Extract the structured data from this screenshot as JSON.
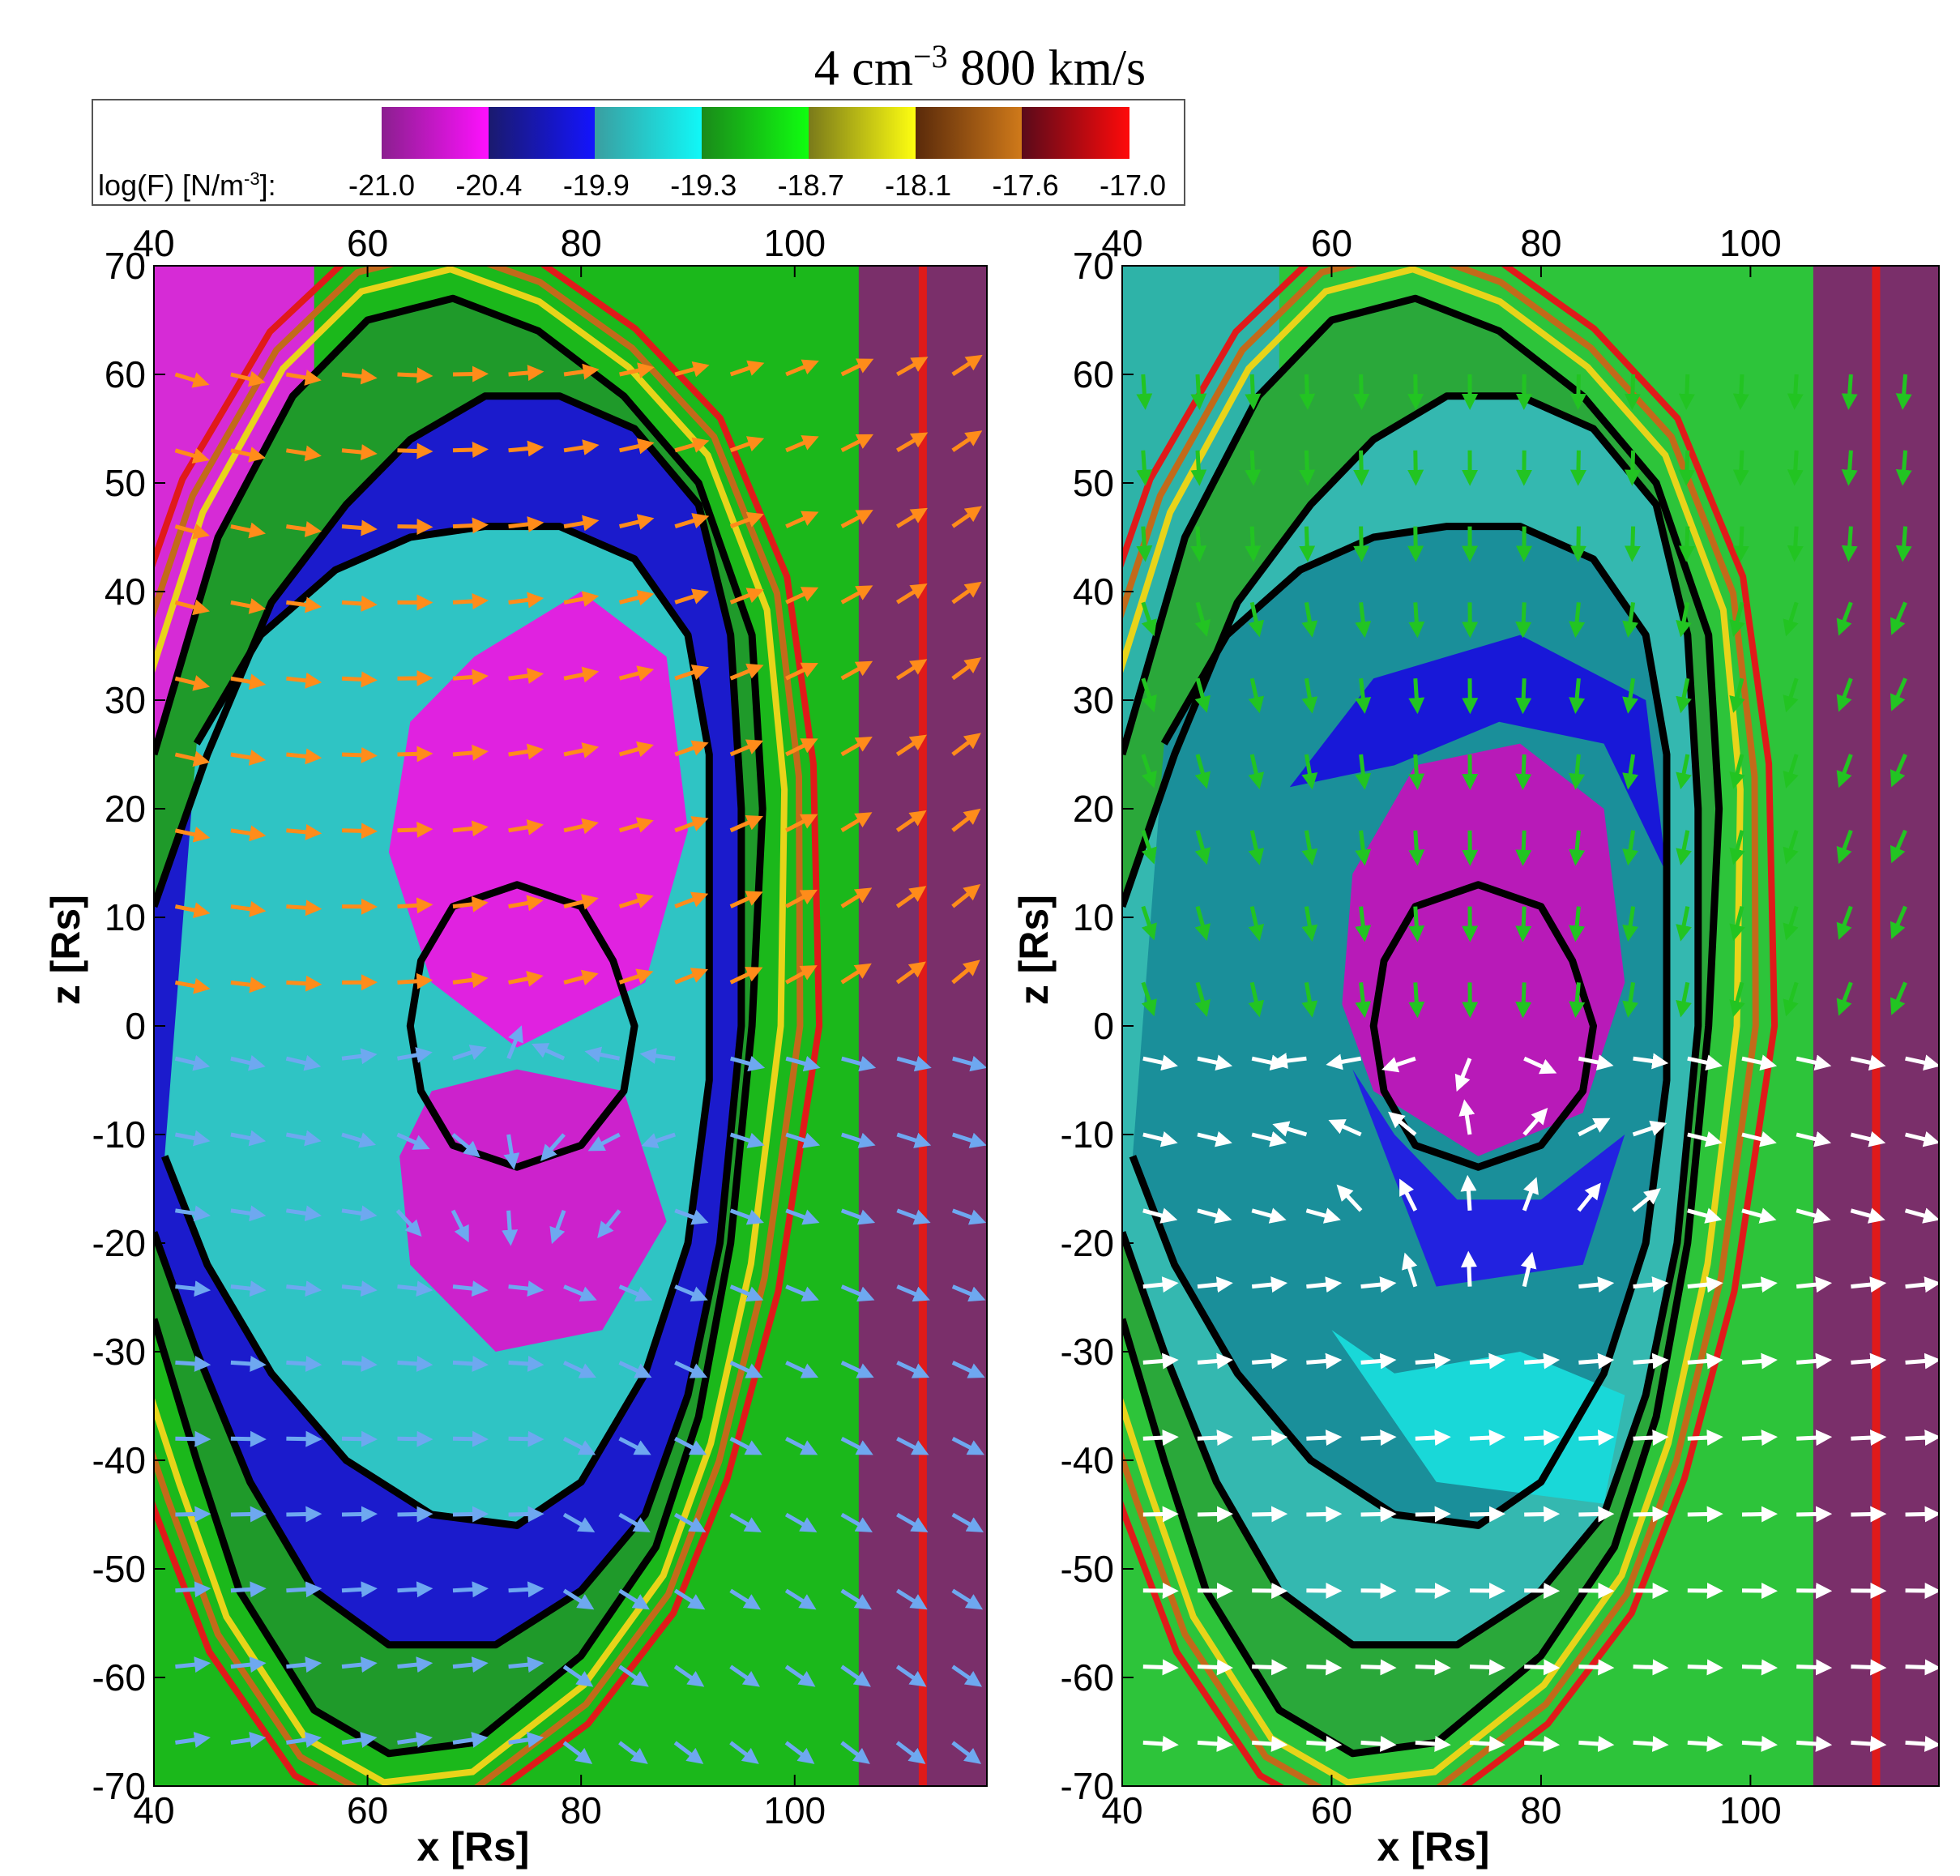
{
  "title": {
    "prefix": "4 cm",
    "exponent": "−3",
    "suffix": " 800 km/s"
  },
  "colorbar": {
    "label_prefix": "log(F) [N/m",
    "label_exponent": "-3",
    "label_suffix": "]:",
    "ticks": [
      "-21.0",
      "-20.4",
      "-19.9",
      "-19.3",
      "-18.7",
      "-18.1",
      "-17.6",
      "-17.0"
    ],
    "segments": [
      {
        "from": "#8b1f8f",
        "to": "#ff10ff"
      },
      {
        "from": "#1a1a6e",
        "to": "#1414ff"
      },
      {
        "from": "#3a9ea0",
        "to": "#10f8f8"
      },
      {
        "from": "#1a8a1a",
        "to": "#10ff10"
      },
      {
        "from": "#7a7a1a",
        "to": "#ffff10"
      },
      {
        "from": "#5a2a0a",
        "to": "#d07a1a"
      },
      {
        "from": "#5a0a1a",
        "to": "#ff0a0a"
      }
    ]
  },
  "chart_data": {
    "type": "heatmap",
    "colorbar_quantity": "log(F) [N/m-3]",
    "colorbar_range": [
      -21.0,
      -17.0
    ],
    "panels": [
      {
        "position": "left",
        "upper_half_arrow_color": "#ff8c1a",
        "lower_half_arrow_color": "#6ea8f0"
      },
      {
        "position": "right",
        "upper_half_arrow_color": "#22c422",
        "lower_half_arrow_color": "#ffffff"
      }
    ],
    "xlabel": "x [Rs]",
    "ylabel": "z [Rs]",
    "xlim": [
      40,
      118
    ],
    "ylim": [
      -70,
      70
    ],
    "x_ticks": [
      "40",
      "60",
      "80",
      "100"
    ],
    "y_ticks": [
      "70",
      "60",
      "50",
      "40",
      "30",
      "20",
      "10",
      "0",
      "-10",
      "-20",
      "-30",
      "-40",
      "-50",
      "-60",
      "-70"
    ],
    "contours": [
      {
        "name": "outer",
        "points": [
          [
            40,
            25
          ],
          [
            46,
            45
          ],
          [
            53,
            58
          ],
          [
            60,
            65
          ],
          [
            68,
            67
          ],
          [
            76,
            64
          ],
          [
            84,
            58
          ],
          [
            91,
            50
          ],
          [
            96,
            36
          ],
          [
            97,
            20
          ],
          [
            96,
            0
          ],
          [
            94,
            -20
          ],
          [
            91,
            -36
          ],
          [
            87,
            -48
          ],
          [
            80,
            -58
          ],
          [
            70,
            -66
          ],
          [
            62,
            -67
          ],
          [
            55,
            -63
          ],
          [
            48,
            -52
          ],
          [
            44,
            -40
          ],
          [
            40,
            -27
          ]
        ]
      },
      {
        "name": "middle",
        "points": [
          [
            40,
            11
          ],
          [
            45,
            25
          ],
          [
            51,
            39
          ],
          [
            58,
            48
          ],
          [
            64,
            54
          ],
          [
            71,
            58
          ],
          [
            78,
            58
          ],
          [
            85,
            55
          ],
          [
            91,
            48
          ],
          [
            94,
            36
          ],
          [
            95,
            20
          ],
          [
            95,
            0
          ],
          [
            93,
            -20
          ],
          [
            90,
            -34
          ],
          [
            86,
            -45
          ],
          [
            80,
            -52
          ],
          [
            72,
            -57
          ],
          [
            62,
            -57
          ],
          [
            55,
            -52
          ],
          [
            49,
            -42
          ],
          [
            44,
            -30
          ],
          [
            40,
            -19
          ]
        ]
      },
      {
        "name": "inner",
        "points": [
          [
            44,
            26
          ],
          [
            50,
            36
          ],
          [
            57,
            42
          ],
          [
            64,
            45
          ],
          [
            71,
            46
          ],
          [
            78,
            46
          ],
          [
            85,
            43
          ],
          [
            90,
            36
          ],
          [
            92,
            25
          ],
          [
            92,
            10
          ],
          [
            92,
            -5
          ],
          [
            90,
            -20
          ],
          [
            86,
            -32
          ],
          [
            80,
            -42
          ],
          [
            74,
            -46
          ],
          [
            66,
            -45
          ],
          [
            58,
            -40
          ],
          [
            51,
            -32
          ],
          [
            45,
            -22
          ],
          [
            41,
            -12
          ]
        ]
      },
      {
        "name": "core",
        "points": [
          [
            64,
            0
          ],
          [
            65,
            6
          ],
          [
            68,
            11
          ],
          [
            74,
            13
          ],
          [
            80,
            11
          ],
          [
            83,
            6
          ],
          [
            85,
            0
          ],
          [
            84,
            -6
          ],
          [
            80,
            -11
          ],
          [
            74,
            -13
          ],
          [
            68,
            -11
          ],
          [
            65,
            -6
          ]
        ]
      }
    ]
  }
}
